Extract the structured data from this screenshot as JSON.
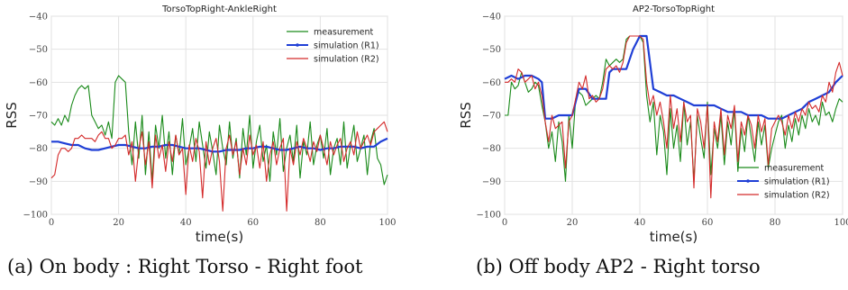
{
  "chart_data": [
    {
      "type": "line",
      "title": "TorsoTopRight-AnkleRight",
      "xlabel": "time(s)",
      "ylabel": "RSS",
      "xlim": [
        0,
        100
      ],
      "ylim": [
        -100,
        -40
      ],
      "xticks": [
        "0",
        "20",
        "40",
        "60",
        "80",
        "100"
      ],
      "yticks": [
        "−100",
        "−90",
        "−80",
        "−70",
        "−60",
        "−50",
        "−40"
      ],
      "grid": true,
      "legend_position": "top-right",
      "caption": "(a) On body : Right Torso - Right foot",
      "series": [
        {
          "name": "measurement",
          "color": "#1a8a1a",
          "x": [
            0,
            1,
            2,
            3,
            4,
            5,
            6,
            7,
            8,
            9,
            10,
            11,
            12,
            13,
            14,
            15,
            16,
            17,
            18,
            19,
            20,
            21,
            22,
            23,
            24,
            25,
            26,
            27,
            28,
            29,
            30,
            31,
            32,
            33,
            34,
            35,
            36,
            37,
            38,
            39,
            40,
            41,
            42,
            43,
            44,
            45,
            46,
            47,
            48,
            49,
            50,
            51,
            52,
            53,
            54,
            55,
            56,
            57,
            58,
            59,
            60,
            61,
            62,
            63,
            64,
            65,
            66,
            67,
            68,
            69,
            70,
            71,
            72,
            73,
            74,
            75,
            76,
            77,
            78,
            79,
            80,
            81,
            82,
            83,
            84,
            85,
            86,
            87,
            88,
            89,
            90,
            91,
            92,
            93,
            94,
            95,
            96,
            97,
            98,
            99,
            100
          ],
          "y": [
            -72,
            -73,
            -71,
            -73,
            -70,
            -72,
            -67,
            -64,
            -62,
            -61,
            -62,
            -61,
            -70,
            -72,
            -74,
            -73,
            -76,
            -72,
            -77,
            -60,
            -58,
            -59,
            -60,
            -75,
            -85,
            -72,
            -83,
            -70,
            -88,
            -75,
            -90,
            -73,
            -80,
            -70,
            -83,
            -75,
            -88,
            -76,
            -82,
            -71,
            -85,
            -80,
            -74,
            -84,
            -72,
            -79,
            -86,
            -75,
            -81,
            -88,
            -73,
            -80,
            -85,
            -72,
            -83,
            -77,
            -89,
            -74,
            -82,
            -70,
            -86,
            -78,
            -73,
            -84,
            -79,
            -90,
            -75,
            -82,
            -71,
            -87,
            -80,
            -76,
            -84,
            -73,
            -89,
            -78,
            -82,
            -72,
            -85,
            -79,
            -76,
            -83,
            -74,
            -88,
            -80,
            -77,
            -85,
            -72,
            -86,
            -79,
            -73,
            -84,
            -80,
            -76,
            -88,
            -78,
            -74,
            -83,
            -85,
            -91,
            -88
          ]
        },
        {
          "name": "simulation (R1)",
          "color": "#1f3fd6",
          "x": [
            0,
            2,
            4,
            6,
            8,
            10,
            12,
            14,
            16,
            18,
            20,
            22,
            24,
            26,
            28,
            30,
            32,
            34,
            36,
            38,
            40,
            42,
            44,
            46,
            48,
            50,
            52,
            54,
            56,
            58,
            60,
            62,
            64,
            66,
            68,
            70,
            72,
            74,
            76,
            78,
            80,
            82,
            84,
            86,
            88,
            90,
            92,
            94,
            96,
            98,
            100
          ],
          "y": [
            -78,
            -78,
            -78.5,
            -79,
            -79,
            -80,
            -80.5,
            -80.5,
            -80,
            -79.5,
            -79,
            -79,
            -79.5,
            -80,
            -80,
            -79.5,
            -79.5,
            -79,
            -79,
            -79.5,
            -80,
            -80,
            -80,
            -80.5,
            -81,
            -81,
            -80.5,
            -80.5,
            -80.5,
            -80,
            -80,
            -79.5,
            -79.5,
            -80,
            -80.5,
            -80.5,
            -80,
            -79.5,
            -80,
            -80,
            -80.5,
            -80,
            -80,
            -79.5,
            -79.5,
            -79.5,
            -80,
            -79.5,
            -79.5,
            -78,
            -77
          ]
        },
        {
          "name": "simulation (R2)",
          "color": "#d42a2a",
          "x": [
            0,
            1,
            2,
            3,
            4,
            5,
            6,
            7,
            8,
            9,
            10,
            11,
            12,
            13,
            14,
            15,
            16,
            17,
            18,
            19,
            20,
            21,
            22,
            23,
            24,
            25,
            26,
            27,
            28,
            29,
            30,
            31,
            32,
            33,
            34,
            35,
            36,
            37,
            38,
            39,
            40,
            41,
            42,
            43,
            44,
            45,
            46,
            47,
            48,
            49,
            50,
            51,
            52,
            53,
            54,
            55,
            56,
            57,
            58,
            59,
            60,
            61,
            62,
            63,
            64,
            65,
            66,
            67,
            68,
            69,
            70,
            71,
            72,
            73,
            74,
            75,
            76,
            77,
            78,
            79,
            80,
            81,
            82,
            83,
            84,
            85,
            86,
            87,
            88,
            89,
            90,
            91,
            92,
            93,
            94,
            95,
            96,
            97,
            98,
            99,
            100
          ],
          "y": [
            -89,
            -88,
            -82,
            -80,
            -80,
            -81,
            -80,
            -77,
            -77,
            -76,
            -77,
            -77,
            -77,
            -78,
            -76,
            -75,
            -77,
            -77,
            -80,
            -79,
            -77,
            -77,
            -76,
            -82,
            -78,
            -90,
            -80,
            -75,
            -85,
            -78,
            -92,
            -76,
            -83,
            -79,
            -87,
            -78,
            -84,
            -76,
            -82,
            -80,
            -94,
            -79,
            -84,
            -77,
            -81,
            -95,
            -78,
            -85,
            -80,
            -77,
            -84,
            -99,
            -80,
            -76,
            -82,
            -78,
            -88,
            -80,
            -85,
            -76,
            -82,
            -79,
            -86,
            -78,
            -90,
            -82,
            -78,
            -85,
            -80,
            -77,
            -99,
            -80,
            -85,
            -78,
            -82,
            -77,
            -80,
            -84,
            -78,
            -81,
            -76,
            -80,
            -85,
            -78,
            -82,
            -79,
            -77,
            -84,
            -80,
            -78,
            -82,
            -75,
            -80,
            -78,
            -76,
            -79,
            -75,
            -74,
            -73,
            -72,
            -75
          ]
        }
      ]
    },
    {
      "type": "line",
      "title": "AP2-TorsoTopRight",
      "xlabel": "time(s)",
      "ylabel": "RSS",
      "xlim": [
        0,
        100
      ],
      "ylim": [
        -100,
        -40
      ],
      "xticks": [
        "0",
        "20",
        "40",
        "60",
        "80",
        "100"
      ],
      "yticks": [
        "−100",
        "−90",
        "−80",
        "−70",
        "−60",
        "−50",
        "−40"
      ],
      "grid": true,
      "legend_position": "bottom-right",
      "caption": "(b) Off body AP2 - Right torso",
      "series": [
        {
          "name": "measurement",
          "color": "#1a8a1a",
          "x": [
            0,
            1,
            2,
            3,
            4,
            5,
            6,
            7,
            8,
            9,
            10,
            11,
            12,
            13,
            14,
            15,
            16,
            17,
            18,
            19,
            20,
            21,
            22,
            23,
            24,
            25,
            26,
            27,
            28,
            29,
            30,
            31,
            32,
            33,
            34,
            35,
            36,
            37,
            38,
            39,
            40,
            41,
            42,
            43,
            44,
            45,
            46,
            47,
            48,
            49,
            50,
            51,
            52,
            53,
            54,
            55,
            56,
            57,
            58,
            59,
            60,
            61,
            62,
            63,
            64,
            65,
            66,
            67,
            68,
            69,
            70,
            71,
            72,
            73,
            74,
            75,
            76,
            77,
            78,
            79,
            80,
            81,
            82,
            83,
            84,
            85,
            86,
            87,
            88,
            89,
            90,
            91,
            92,
            93,
            94,
            95,
            96,
            97,
            98,
            99,
            100
          ],
          "y": [
            -70,
            -70,
            -60,
            -62,
            -61,
            -57,
            -60,
            -63,
            -62,
            -60,
            -61,
            -67,
            -72,
            -80,
            -75,
            -84,
            -72,
            -78,
            -90,
            -70,
            -80,
            -65,
            -63,
            -64,
            -67,
            -66,
            -65,
            -64,
            -65,
            -60,
            -53,
            -55,
            -54,
            -53,
            -54,
            -53,
            -47,
            -46,
            -46,
            -46,
            -46,
            -48,
            -64,
            -72,
            -66,
            -82,
            -70,
            -75,
            -88,
            -68,
            -80,
            -73,
            -84,
            -66,
            -79,
            -72,
            -90,
            -70,
            -77,
            -83,
            -66,
            -88,
            -74,
            -80,
            -70,
            -85,
            -72,
            -79,
            -68,
            -87,
            -74,
            -81,
            -70,
            -77,
            -84,
            -72,
            -79,
            -73,
            -86,
            -80,
            -76,
            -72,
            -70,
            -80,
            -73,
            -78,
            -71,
            -76,
            -70,
            -74,
            -68,
            -72,
            -70,
            -73,
            -66,
            -70,
            -69,
            -72,
            -68,
            -65,
            -66
          ]
        },
        {
          "name": "simulation (R1)",
          "color": "#1f3fd6",
          "x": [
            0,
            2,
            4,
            6,
            8,
            10,
            11,
            12,
            14,
            16,
            18,
            20,
            22,
            24,
            26,
            28,
            30,
            31,
            32,
            34,
            36,
            38,
            40,
            41,
            42,
            44,
            46,
            48,
            50,
            52,
            54,
            56,
            58,
            60,
            62,
            64,
            66,
            68,
            70,
            72,
            74,
            76,
            78,
            80,
            82,
            84,
            86,
            88,
            90,
            92,
            94,
            96,
            98,
            100
          ],
          "y": [
            -59,
            -58,
            -59,
            -58,
            -58,
            -59,
            -60,
            -71,
            -71,
            -70,
            -70,
            -70,
            -62,
            -62,
            -65,
            -65,
            -65,
            -57,
            -56,
            -56,
            -56,
            -50,
            -46,
            -46,
            -46,
            -62,
            -63,
            -64,
            -64,
            -65,
            -66,
            -67,
            -67,
            -67,
            -67,
            -68,
            -69,
            -69,
            -69,
            -70,
            -70,
            -70,
            -71,
            -71,
            -71,
            -70,
            -69,
            -68,
            -66,
            -65,
            -64,
            -63,
            -60,
            -58
          ]
        },
        {
          "name": "simulation (R2)",
          "color": "#d42a2a",
          "x": [
            0,
            1,
            2,
            3,
            4,
            5,
            6,
            7,
            8,
            9,
            10,
            11,
            12,
            13,
            14,
            15,
            16,
            17,
            18,
            19,
            20,
            21,
            22,
            23,
            24,
            25,
            26,
            27,
            28,
            29,
            30,
            31,
            32,
            33,
            34,
            35,
            36,
            37,
            38,
            39,
            40,
            41,
            42,
            43,
            44,
            45,
            46,
            47,
            48,
            49,
            50,
            51,
            52,
            53,
            54,
            55,
            56,
            57,
            58,
            59,
            60,
            61,
            62,
            63,
            64,
            65,
            66,
            67,
            68,
            69,
            70,
            71,
            72,
            73,
            74,
            75,
            76,
            77,
            78,
            79,
            80,
            81,
            82,
            83,
            84,
            85,
            86,
            87,
            88,
            89,
            90,
            91,
            92,
            93,
            94,
            95,
            96,
            97,
            98,
            99,
            100
          ],
          "y": [
            -60,
            -60,
            -59,
            -60,
            -56,
            -57,
            -60,
            -59,
            -58,
            -62,
            -60,
            -64,
            -72,
            -78,
            -70,
            -74,
            -73,
            -72,
            -86,
            -72,
            -70,
            -65,
            -60,
            -62,
            -58,
            -65,
            -64,
            -66,
            -65,
            -62,
            -56,
            -55,
            -56,
            -55,
            -57,
            -54,
            -48,
            -46,
            -46,
            -46,
            -46,
            -47,
            -60,
            -67,
            -64,
            -70,
            -66,
            -72,
            -80,
            -64,
            -74,
            -68,
            -78,
            -66,
            -72,
            -70,
            -92,
            -68,
            -72,
            -80,
            -67,
            -95,
            -72,
            -78,
            -68,
            -82,
            -70,
            -74,
            -67,
            -84,
            -72,
            -76,
            -70,
            -73,
            -80,
            -70,
            -75,
            -71,
            -85,
            -74,
            -72,
            -70,
            -72,
            -76,
            -70,
            -74,
            -69,
            -72,
            -68,
            -70,
            -66,
            -68,
            -67,
            -69,
            -64,
            -66,
            -60,
            -63,
            -57,
            -54,
            -58
          ]
        }
      ]
    }
  ]
}
